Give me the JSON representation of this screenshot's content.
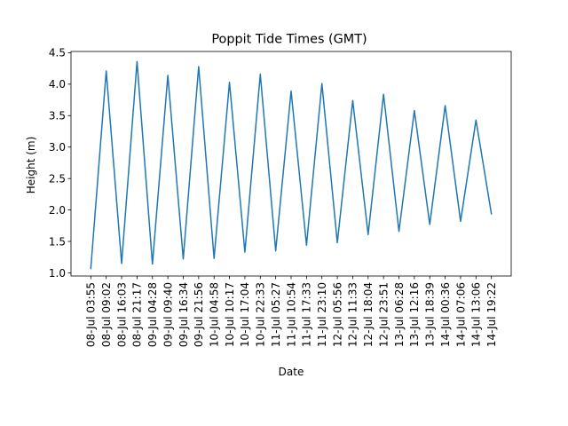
{
  "chart_data": {
    "type": "line",
    "title": "Poppit Tide Times (GMT)",
    "xlabel": "Date",
    "ylabel": "Height (m)",
    "ylim": [
      0.95,
      4.52
    ],
    "yticks": [
      1.0,
      1.5,
      2.0,
      2.5,
      3.0,
      3.5,
      4.0,
      4.5
    ],
    "ytick_labels": [
      "1.0",
      "1.5",
      "2.0",
      "2.5",
      "3.0",
      "3.5",
      "4.0",
      "4.5"
    ],
    "grid": false,
    "line_color": "#1f77b4",
    "categories": [
      "08-Jul 03:55",
      "08-Jul 09:02",
      "08-Jul 16:03",
      "08-Jul 21:17",
      "09-Jul 04:28",
      "09-Jul 09:40",
      "09-Jul 16:34",
      "09-Jul 21:56",
      "10-Jul 04:58",
      "10-Jul 10:17",
      "10-Jul 17:04",
      "10-Jul 22:33",
      "11-Jul 05:27",
      "11-Jul 10:54",
      "11-Jul 17:33",
      "11-Jul 23:10",
      "12-Jul 05:56",
      "12-Jul 11:33",
      "12-Jul 18:04",
      "12-Jul 23:51",
      "13-Jul 06:28",
      "13-Jul 12:16",
      "13-Jul 18:39",
      "14-Jul 00:36",
      "14-Jul 07:06",
      "14-Jul 13:06",
      "14-Jul 19:22"
    ],
    "series": [
      {
        "values": [
          1.07,
          4.21,
          1.15,
          4.36,
          1.14,
          4.14,
          1.22,
          4.28,
          1.23,
          4.03,
          1.33,
          4.16,
          1.35,
          3.89,
          1.44,
          4.01,
          1.48,
          3.74,
          1.61,
          3.84,
          1.66,
          3.58,
          1.77,
          3.66,
          1.82,
          3.43,
          1.94
        ]
      }
    ]
  }
}
